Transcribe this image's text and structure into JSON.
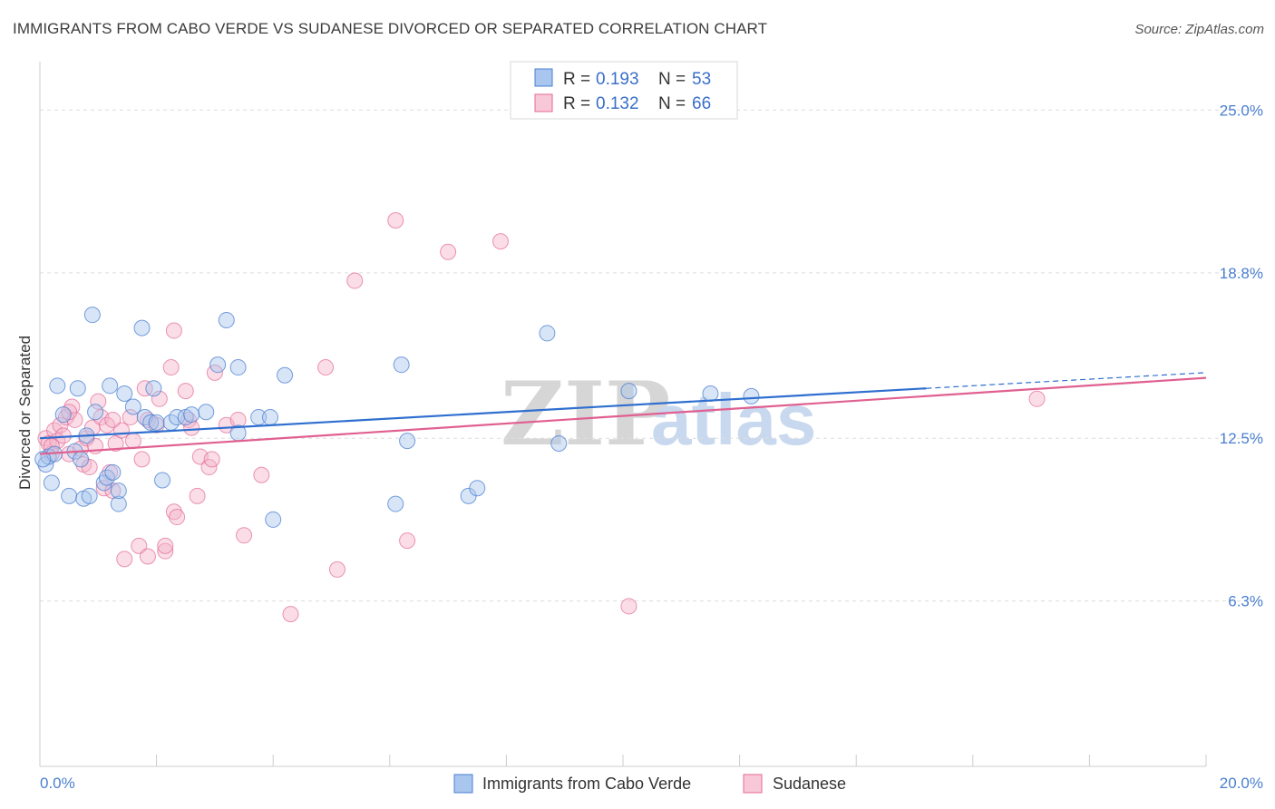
{
  "title": "IMMIGRANTS FROM CABO VERDE VS SUDANESE DIVORCED OR SEPARATED CORRELATION CHART",
  "source": "Source: ZipAtlas.com",
  "watermark": {
    "zip": "ZIP",
    "atlas": "atlas"
  },
  "colors": {
    "blue": "#4a7fd0",
    "blue_fill": "#a9c6ee",
    "blue_line": "#2f6fcf",
    "pink": "#e36a96",
    "pink_fill": "#f3b4c9",
    "pink_line": "#e06090",
    "grid": "#dddddd"
  },
  "legend": {
    "r_label": "R = ",
    "n_label": "N = ",
    "series": [
      {
        "r": "0.193",
        "n": "53"
      },
      {
        "r": "0.132",
        "n": "66"
      }
    ]
  },
  "chart_data": {
    "type": "scatter",
    "title": "IMMIGRANTS FROM CABO VERDE VS SUDANESE DIVORCED OR SEPARATED CORRELATION CHART",
    "xlabel": "",
    "ylabel": "Divorced or Separated",
    "xlim": [
      0,
      20
    ],
    "ylim": [
      0,
      26.5
    ],
    "x_tick_labels": [
      "0.0%",
      "20.0%"
    ],
    "y_ticks": [
      6.3,
      12.5,
      18.8,
      25.0
    ],
    "y_tick_labels": [
      "6.3%",
      "12.5%",
      "18.8%",
      "25.0%"
    ],
    "series": [
      {
        "name": "Immigrants from Cabo Verde",
        "trend": {
          "x0": 0,
          "y0": 12.5,
          "x1": 15.2,
          "y1": 14.4,
          "dash_to_x": 20,
          "dash_to_y": 15.0
        },
        "points": [
          [
            0.1,
            11.5
          ],
          [
            0.15,
            11.8
          ],
          [
            0.2,
            10.8
          ],
          [
            0.25,
            11.9
          ],
          [
            0.3,
            14.5
          ],
          [
            0.4,
            13.4
          ],
          [
            0.5,
            10.3
          ],
          [
            0.6,
            12.0
          ],
          [
            0.65,
            14.4
          ],
          [
            0.75,
            10.2
          ],
          [
            0.8,
            12.6
          ],
          [
            0.85,
            10.3
          ],
          [
            0.9,
            17.2
          ],
          [
            0.95,
            13.5
          ],
          [
            1.1,
            10.8
          ],
          [
            1.15,
            11.0
          ],
          [
            1.2,
            14.5
          ],
          [
            1.25,
            11.2
          ],
          [
            1.35,
            10.0
          ],
          [
            1.35,
            10.5
          ],
          [
            1.45,
            14.2
          ],
          [
            1.6,
            13.7
          ],
          [
            1.75,
            16.7
          ],
          [
            1.8,
            13.3
          ],
          [
            1.9,
            13.1
          ],
          [
            1.95,
            14.4
          ],
          [
            2.0,
            13.1
          ],
          [
            2.1,
            10.9
          ],
          [
            2.25,
            13.1
          ],
          [
            2.35,
            13.3
          ],
          [
            2.5,
            13.3
          ],
          [
            2.85,
            13.5
          ],
          [
            3.05,
            15.3
          ],
          [
            3.2,
            17.0
          ],
          [
            3.4,
            15.2
          ],
          [
            3.4,
            12.7
          ],
          [
            3.75,
            13.3
          ],
          [
            3.95,
            13.3
          ],
          [
            4.0,
            9.4
          ],
          [
            4.2,
            14.9
          ],
          [
            6.2,
            15.3
          ],
          [
            6.1,
            10.0
          ],
          [
            6.3,
            12.4
          ],
          [
            7.35,
            10.3
          ],
          [
            7.5,
            10.6
          ],
          [
            8.7,
            16.5
          ],
          [
            8.9,
            12.3
          ],
          [
            10.1,
            14.3
          ],
          [
            11.5,
            14.2
          ],
          [
            12.2,
            14.1
          ],
          [
            0.05,
            11.7
          ],
          [
            0.7,
            11.7
          ],
          [
            2.6,
            13.4
          ]
        ]
      },
      {
        "name": "Sudanese",
        "trend": {
          "x0": 0,
          "y0": 11.9,
          "x1": 20,
          "y1": 14.8
        },
        "points": [
          [
            0.1,
            12.5
          ],
          [
            0.15,
            12.3
          ],
          [
            0.2,
            11.9
          ],
          [
            0.25,
            12.8
          ],
          [
            0.3,
            12.4
          ],
          [
            0.35,
            13.0
          ],
          [
            0.4,
            12.6
          ],
          [
            0.45,
            13.3
          ],
          [
            0.5,
            11.9
          ],
          [
            0.55,
            13.7
          ],
          [
            0.6,
            13.2
          ],
          [
            0.7,
            12.1
          ],
          [
            0.75,
            11.5
          ],
          [
            0.8,
            12.5
          ],
          [
            0.85,
            11.4
          ],
          [
            0.9,
            12.9
          ],
          [
            0.95,
            12.2
          ],
          [
            1.0,
            13.9
          ],
          [
            1.05,
            13.3
          ],
          [
            1.1,
            10.6
          ],
          [
            1.15,
            13.0
          ],
          [
            1.2,
            11.2
          ],
          [
            1.25,
            10.5
          ],
          [
            1.3,
            12.3
          ],
          [
            1.4,
            12.8
          ],
          [
            1.45,
            7.9
          ],
          [
            1.55,
            13.3
          ],
          [
            1.6,
            12.4
          ],
          [
            1.7,
            8.4
          ],
          [
            1.75,
            11.7
          ],
          [
            1.8,
            14.4
          ],
          [
            1.85,
            13.2
          ],
          [
            1.85,
            8.0
          ],
          [
            2.0,
            13.0
          ],
          [
            2.05,
            14.0
          ],
          [
            2.15,
            8.2
          ],
          [
            2.15,
            8.4
          ],
          [
            2.25,
            15.2
          ],
          [
            2.3,
            16.6
          ],
          [
            2.3,
            9.7
          ],
          [
            2.35,
            9.5
          ],
          [
            2.5,
            14.3
          ],
          [
            2.55,
            13.2
          ],
          [
            2.6,
            12.9
          ],
          [
            2.7,
            10.3
          ],
          [
            2.75,
            11.8
          ],
          [
            2.9,
            11.4
          ],
          [
            2.95,
            11.7
          ],
          [
            3.0,
            15.0
          ],
          [
            3.2,
            13.0
          ],
          [
            3.4,
            13.2
          ],
          [
            3.5,
            8.8
          ],
          [
            3.8,
            11.1
          ],
          [
            4.3,
            5.8
          ],
          [
            4.9,
            15.2
          ],
          [
            5.1,
            7.5
          ],
          [
            5.4,
            18.5
          ],
          [
            6.1,
            20.8
          ],
          [
            6.3,
            8.6
          ],
          [
            7.0,
            19.6
          ],
          [
            7.9,
            20.0
          ],
          [
            10.1,
            6.1
          ],
          [
            17.1,
            14.0
          ],
          [
            0.5,
            13.5
          ],
          [
            1.25,
            13.2
          ],
          [
            0.2,
            12.2
          ]
        ]
      }
    ]
  },
  "bottom_legend": [
    "Immigrants from Cabo Verde",
    "Sudanese"
  ]
}
